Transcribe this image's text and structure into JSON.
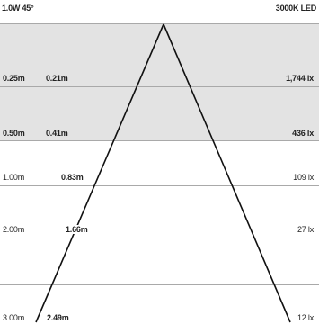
{
  "header": {
    "power_angle": "1.0W 45°",
    "color_temp": "3000K LED"
  },
  "colors": {
    "shaded_band": "#e3e3e3",
    "grid_line": "#a9a9a9",
    "beam_line": "#111111"
  },
  "rows": [
    {
      "distance": "0.25m",
      "diameter": "0.21m",
      "lux": "1,744 lx",
      "shaded": true
    },
    {
      "distance": "0.50m",
      "diameter": "0.41m",
      "lux": "436 lx",
      "shaded": true
    },
    {
      "distance": "1.00m",
      "diameter": "0.83m",
      "lux": "109 lx",
      "shaded": false
    },
    {
      "distance": "2.00m",
      "diameter": "1.66m",
      "lux": "27 lx",
      "shaded": false
    },
    {
      "distance": "3.00m",
      "diameter": "2.49m",
      "lux": "12 lx",
      "shaded": false
    }
  ]
}
